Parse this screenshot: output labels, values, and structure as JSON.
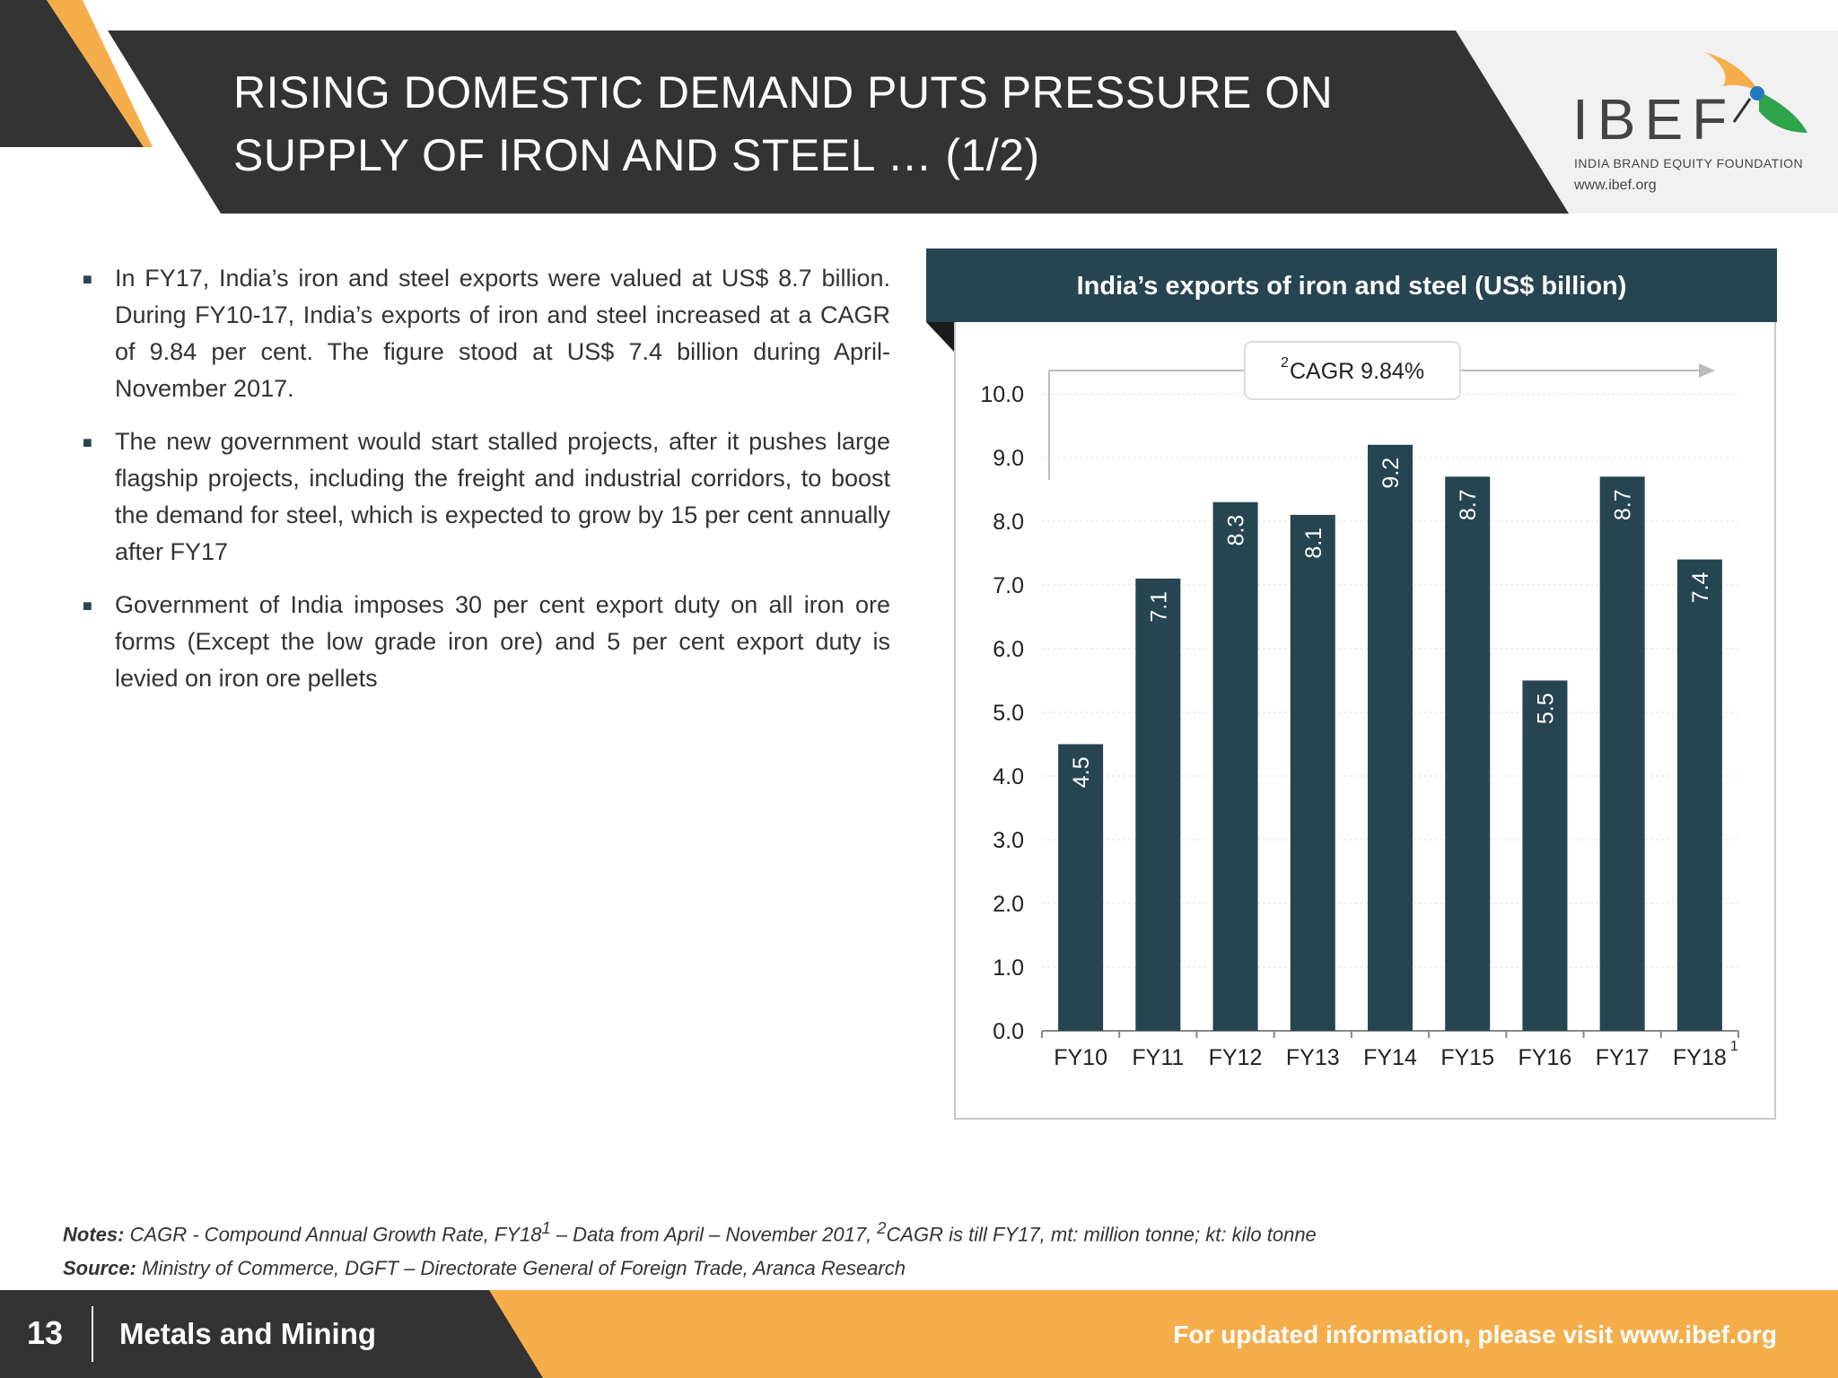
{
  "header": {
    "title_line1": "RISING DOMESTIC DEMAND PUTS PRESSURE ON",
    "title_line2": "SUPPLY OF IRON AND STEEL … (1/2)"
  },
  "logo": {
    "name": "IBEF",
    "subtitle": "INDIA BRAND EQUITY FOUNDATION",
    "url": "www.ibef.org"
  },
  "bullets": [
    "In FY17, India’s iron and steel exports were valued at US$ 8.7 billion. During FY10-17, India’s exports of iron and steel increased at a CAGR of 9.84 per cent. The figure stood at US$ 7.4 billion during April-November 2017.",
    "The new government would start stalled projects, after it pushes large flagship projects, including the freight and industrial corridors, to boost the demand for steel, which is expected to grow by 15 per cent annually after FY17",
    "Government of India imposes 30 per cent export duty on all iron ore forms (Except the low grade iron ore) and 5 per cent export duty is levied on iron ore pellets"
  ],
  "chart_data": {
    "type": "bar",
    "title": "India’s exports of iron and steel (US$ billion)",
    "categories": [
      "FY10",
      "FY11",
      "FY12",
      "FY13",
      "FY14",
      "FY15",
      "FY16",
      "FY17",
      "FY18"
    ],
    "category_superscripts": [
      "",
      "",
      "",
      "",
      "",
      "",
      "",
      "",
      "1"
    ],
    "values": [
      4.5,
      7.1,
      8.3,
      8.1,
      9.2,
      8.7,
      5.5,
      8.7,
      7.4
    ],
    "data_labels": [
      "4.5",
      "7.1",
      "8.3",
      "8.1",
      "9.2",
      "8.7",
      "5.5",
      "8.7",
      "7.4"
    ],
    "yticks": [
      "0.0",
      "1.0",
      "2.0",
      "3.0",
      "4.0",
      "5.0",
      "6.0",
      "7.0",
      "8.0",
      "9.0",
      "10.0"
    ],
    "ylim": [
      0,
      10
    ],
    "grid": true,
    "bar_color": "#264550",
    "annotation": {
      "superscript": "2",
      "text": "CAGR 9.84%"
    }
  },
  "notes": {
    "notes_label": "Notes:",
    "notes_text_1": " CAGR - Compound Annual Growth Rate, FY18",
    "notes_sup_1": "1",
    "notes_text_2": " – Data from April – November 2017, ",
    "notes_sup_2": "2",
    "notes_text_3": "CAGR is till FY17, mt: million tonne; kt: kilo tonne",
    "source_label": "Source:",
    "source_text": " Ministry of Commerce, DGFT – Directorate General of Foreign Trade, Aranca Research"
  },
  "footer": {
    "page_number": "13",
    "section": "Metals and Mining",
    "visit_text": "For updated information, please visit www.ibef.org"
  },
  "colors": {
    "dark": "#333333",
    "accent_orange": "#f5ae4a",
    "teal": "#264550"
  }
}
